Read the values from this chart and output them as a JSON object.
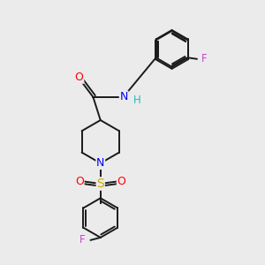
{
  "bg_color": "#ebebeb",
  "bond_color": "#1a1a1a",
  "atom_colors": {
    "O": "#ff0000",
    "N": "#0000ee",
    "H": "#22bbbb",
    "S": "#ccaa00",
    "F": "#cc44cc",
    "C": "#1a1a1a"
  },
  "figsize": [
    3.0,
    3.0
  ],
  "dpi": 100,
  "xlim": [
    0,
    10
  ],
  "ylim": [
    0,
    10
  ]
}
